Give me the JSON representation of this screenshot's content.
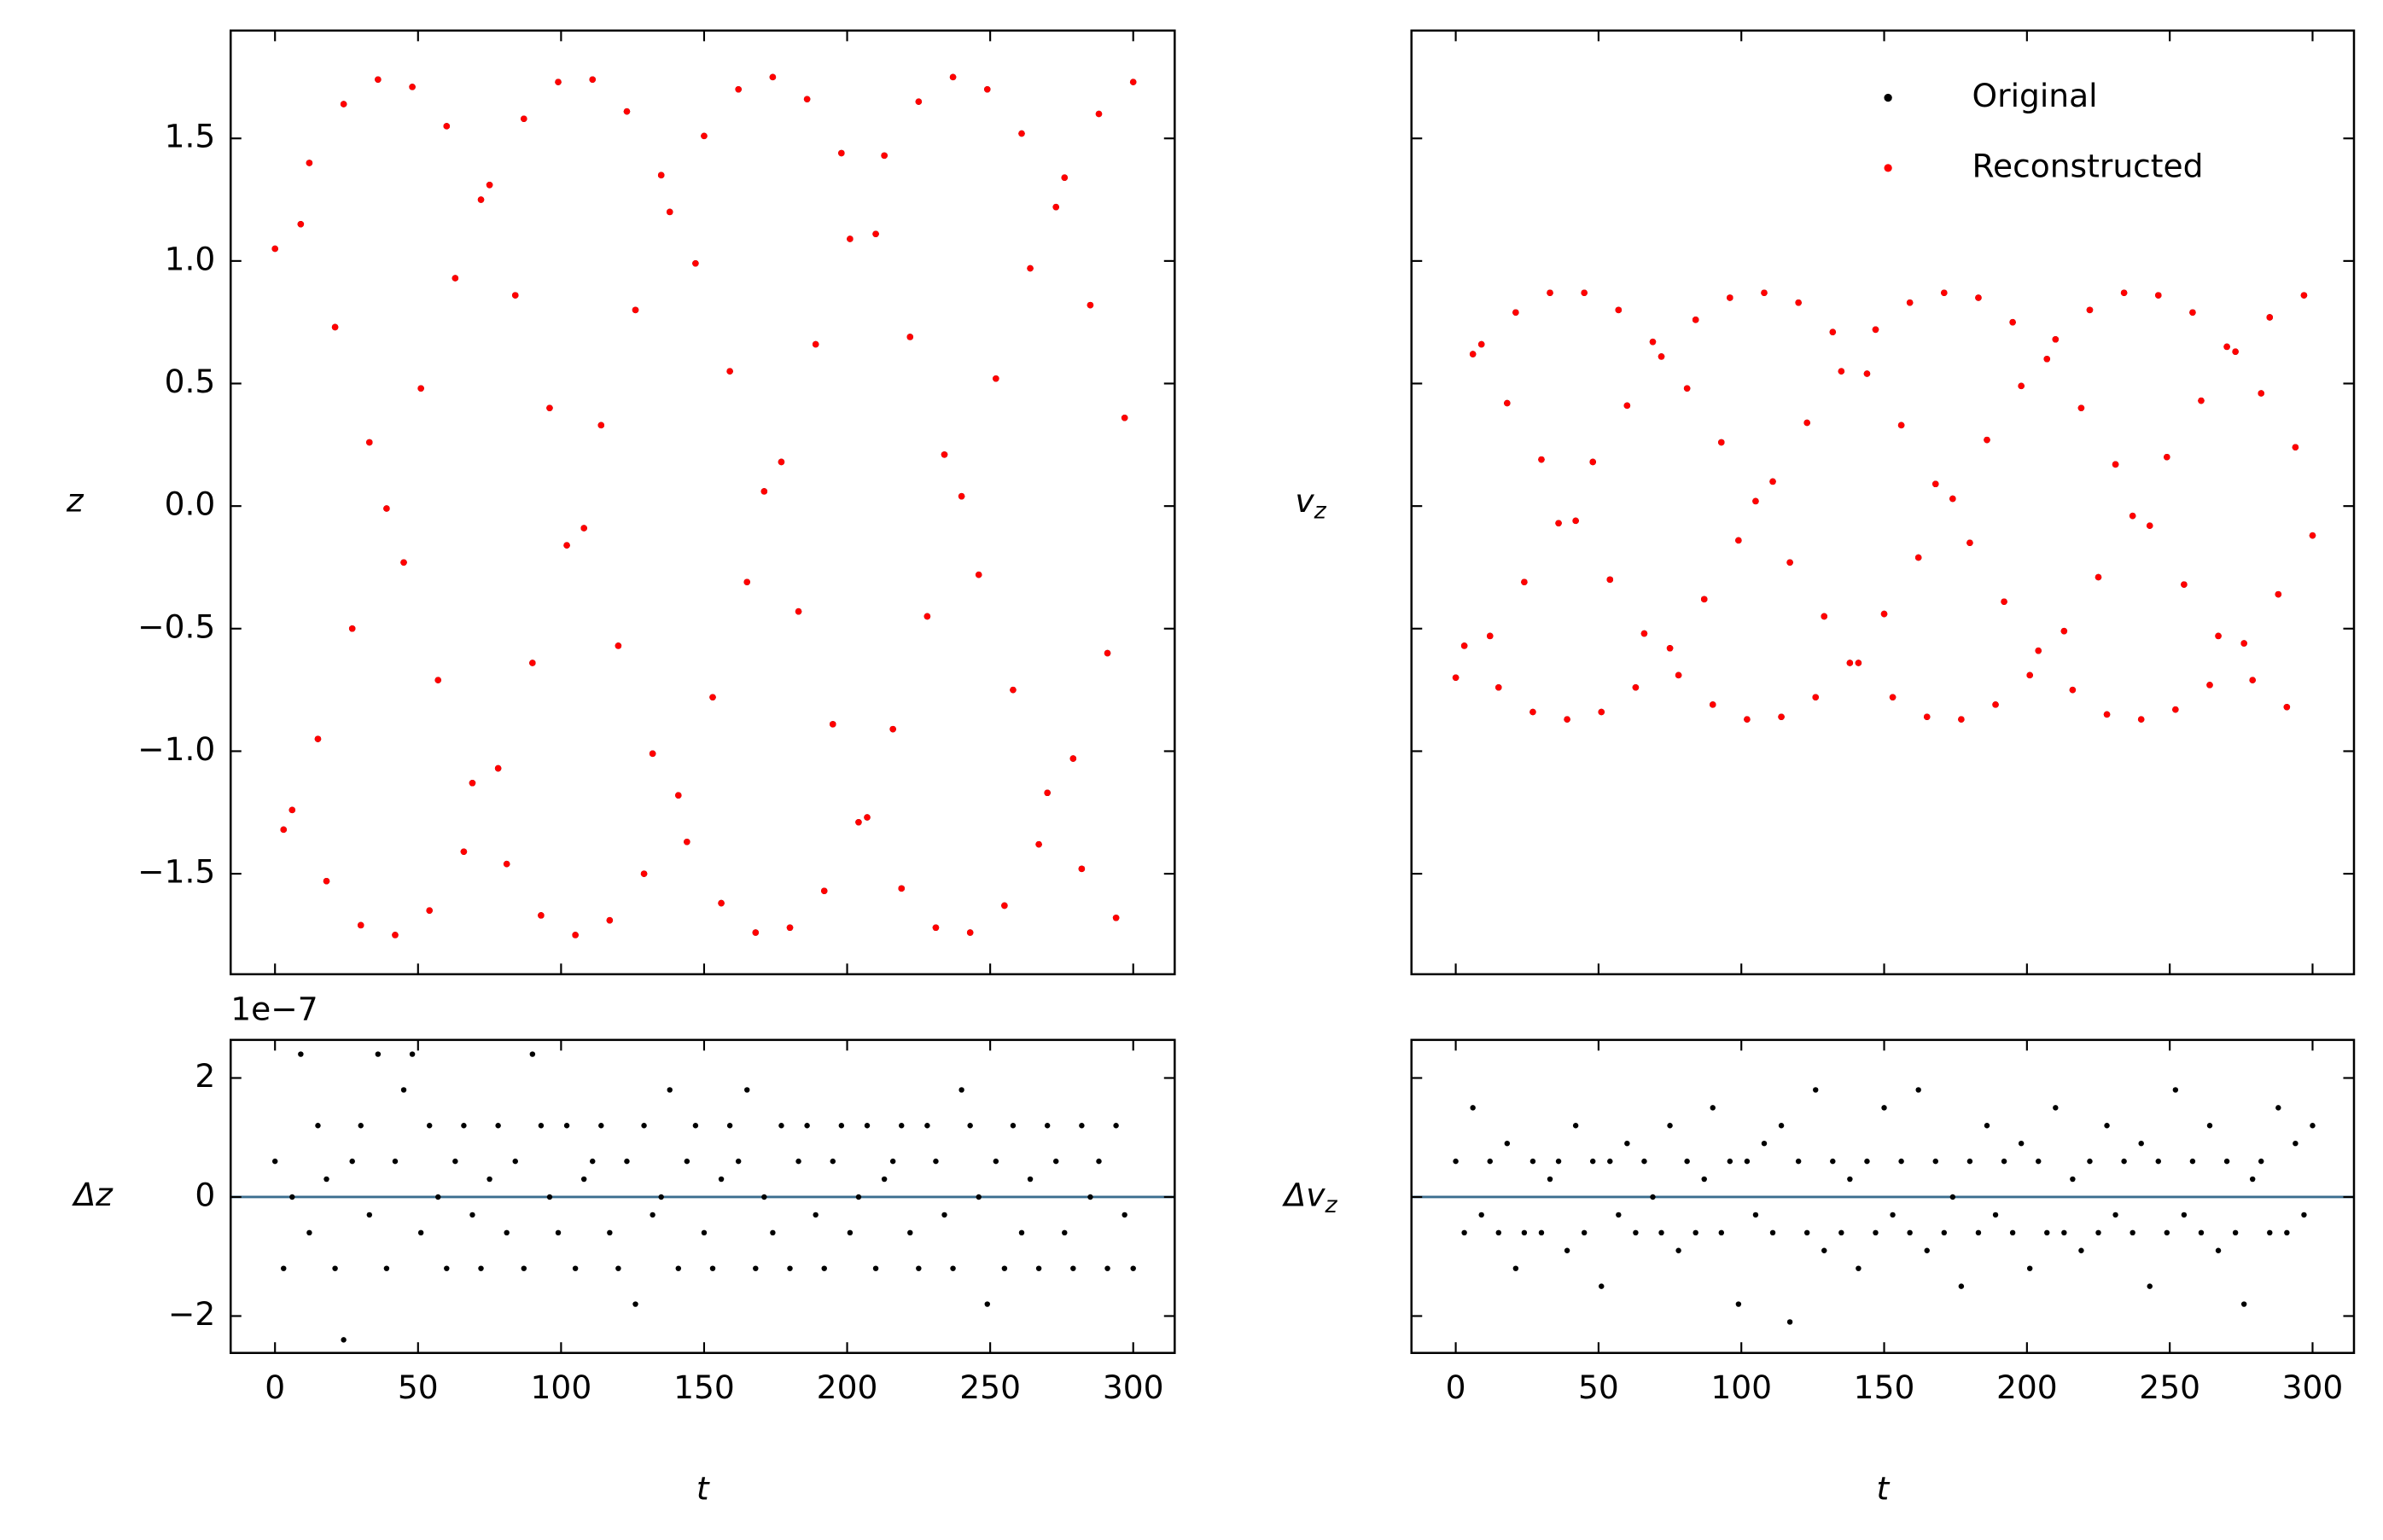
{
  "chart_data": [
    {
      "type": "scatter",
      "ylabel": "z",
      "x": [
        0,
        3,
        6,
        9,
        12,
        15,
        18,
        21,
        24,
        27,
        30,
        33,
        36,
        39,
        42,
        45,
        48,
        51,
        54,
        57,
        60,
        63,
        66,
        69,
        72,
        75,
        78,
        81,
        84,
        87,
        90,
        93,
        96,
        99,
        102,
        105,
        108,
        111,
        114,
        117,
        120,
        123,
        126,
        129,
        132,
        135,
        138,
        141,
        144,
        147,
        150,
        153,
        156,
        159,
        162,
        165,
        168,
        171,
        174,
        177,
        180,
        183,
        186,
        189,
        192,
        195,
        198,
        201,
        204,
        207,
        210,
        213,
        216,
        219,
        222,
        225,
        228,
        231,
        234,
        237,
        240,
        243,
        246,
        249,
        252,
        255,
        258,
        261,
        264,
        267,
        270,
        273,
        276,
        279,
        282,
        285,
        288,
        291,
        294,
        297,
        300
      ],
      "series": [
        {
          "name": "Original",
          "color": "#000000",
          "values": [
            1.05,
            -1.32,
            -1.24,
            1.15,
            1.4,
            -0.95,
            -1.53,
            0.73,
            1.64,
            -0.5,
            -1.71,
            0.26,
            1.74,
            -0.01,
            -1.75,
            -0.23,
            1.71,
            0.48,
            -1.65,
            -0.71,
            1.55,
            0.93,
            -1.41,
            -1.13,
            1.25,
            1.31,
            -1.07,
            -1.46,
            0.86,
            1.58,
            -0.64,
            -1.67,
            0.4,
            1.73,
            -0.16,
            -1.75,
            -0.09,
            1.74,
            0.33,
            -1.69,
            -0.57,
            1.61,
            0.8,
            -1.5,
            -1.01,
            1.35,
            1.2,
            -1.18,
            -1.37,
            0.99,
            1.51,
            -0.78,
            -1.62,
            0.55,
            1.7,
            -0.31,
            -1.74,
            0.06,
            1.75,
            0.18,
            -1.72,
            -0.43,
            1.66,
            0.66,
            -1.57,
            -0.89,
            1.44,
            1.09,
            -1.29,
            -1.27,
            1.11,
            1.43,
            -0.91,
            -1.56,
            0.69,
            1.65,
            -0.45,
            -1.72,
            0.21,
            1.75,
            0.04,
            -1.74,
            -0.28,
            1.7,
            0.52,
            -1.63,
            -0.75,
            1.52,
            0.97,
            -1.38,
            -1.17,
            1.22,
            1.34,
            -1.03,
            -1.48,
            0.82,
            1.6,
            -0.6,
            -1.68,
            0.36,
            1.73
          ]
        },
        {
          "name": "Reconstructed",
          "color": "#ff0000",
          "values": [
            1.05,
            -1.32,
            -1.24,
            1.15,
            1.4,
            -0.95,
            -1.53,
            0.73,
            1.64,
            -0.5,
            -1.71,
            0.26,
            1.74,
            -0.01,
            -1.75,
            -0.23,
            1.71,
            0.48,
            -1.65,
            -0.71,
            1.55,
            0.93,
            -1.41,
            -1.13,
            1.25,
            1.31,
            -1.07,
            -1.46,
            0.86,
            1.58,
            -0.64,
            -1.67,
            0.4,
            1.73,
            -0.16,
            -1.75,
            -0.09,
            1.74,
            0.33,
            -1.69,
            -0.57,
            1.61,
            0.8,
            -1.5,
            -1.01,
            1.35,
            1.2,
            -1.18,
            -1.37,
            0.99,
            1.51,
            -0.78,
            -1.62,
            0.55,
            1.7,
            -0.31,
            -1.74,
            0.06,
            1.75,
            0.18,
            -1.72,
            -0.43,
            1.66,
            0.66,
            -1.57,
            -0.89,
            1.44,
            1.09,
            -1.29,
            -1.27,
            1.11,
            1.43,
            -0.91,
            -1.56,
            0.69,
            1.65,
            -0.45,
            -1.72,
            0.21,
            1.75,
            0.04,
            -1.74,
            -0.28,
            1.7,
            0.52,
            -1.63,
            -0.75,
            1.52,
            0.97,
            -1.38,
            -1.17,
            1.22,
            1.34,
            -1.03,
            -1.48,
            0.82,
            1.6,
            -0.6,
            -1.68,
            0.36,
            1.73
          ]
        }
      ],
      "xlim": [
        -15.5,
        314.5
      ],
      "xticks": [
        0,
        50,
        100,
        150,
        200,
        250,
        300
      ],
      "xtick_labels": false,
      "ylim": [
        -1.91,
        1.94
      ],
      "yticks": [
        {
          "value": -1.5,
          "label": "−1.5"
        },
        {
          "value": -1,
          "label": "−1.0"
        },
        {
          "value": -0.5,
          "label": "−0.5"
        },
        {
          "value": 0,
          "label": "0.0"
        },
        0.5,
        {
          "value": 1,
          "label": "1.0"
        },
        1.5
      ],
      "ytick_labels": true
    },
    {
      "type": "scatter",
      "ylabel": {
        "base": "v",
        "sub": "z"
      },
      "x": [
        0,
        3,
        6,
        9,
        12,
        15,
        18,
        21,
        24,
        27,
        30,
        33,
        36,
        39,
        42,
        45,
        48,
        51,
        54,
        57,
        60,
        63,
        66,
        69,
        72,
        75,
        78,
        81,
        84,
        87,
        90,
        93,
        96,
        99,
        102,
        105,
        108,
        111,
        114,
        117,
        120,
        123,
        126,
        129,
        132,
        135,
        138,
        141,
        144,
        147,
        150,
        153,
        156,
        159,
        162,
        165,
        168,
        171,
        174,
        177,
        180,
        183,
        186,
        189,
        192,
        195,
        198,
        201,
        204,
        207,
        210,
        213,
        216,
        219,
        222,
        225,
        228,
        231,
        234,
        237,
        240,
        243,
        246,
        249,
        252,
        255,
        258,
        261,
        264,
        267,
        270,
        273,
        276,
        279,
        282,
        285,
        288,
        291,
        294,
        297,
        300
      ],
      "series": [
        {
          "name": "Original",
          "color": "#000000",
          "values": [
            -0.7,
            -0.57,
            0.62,
            0.66,
            -0.53,
            -0.74,
            0.42,
            0.79,
            -0.31,
            -0.84,
            0.19,
            0.87,
            -0.07,
            -0.87,
            -0.06,
            0.87,
            0.18,
            -0.84,
            -0.3,
            0.8,
            0.41,
            -0.74,
            -0.52,
            0.67,
            0.61,
            -0.58,
            -0.69,
            0.48,
            0.76,
            -0.38,
            -0.81,
            0.26,
            0.85,
            -0.14,
            -0.87,
            0.02,
            0.87,
            0.1,
            -0.86,
            -0.23,
            0.83,
            0.34,
            -0.78,
            -0.45,
            0.71,
            0.55,
            -0.64,
            -0.64,
            0.54,
            0.72,
            -0.44,
            -0.78,
            0.33,
            0.83,
            -0.21,
            -0.86,
            0.09,
            0.87,
            0.03,
            -0.87,
            -0.15,
            0.85,
            0.27,
            -0.81,
            -0.39,
            0.75,
            0.49,
            -0.69,
            -0.59,
            0.6,
            0.68,
            -0.51,
            -0.75,
            0.4,
            0.8,
            -0.29,
            -0.85,
            0.17,
            0.87,
            -0.04,
            -0.87,
            -0.08,
            0.86,
            0.2,
            -0.83,
            -0.32,
            0.79,
            0.43,
            -0.73,
            -0.53,
            0.65,
            0.63,
            -0.56,
            -0.71,
            0.46,
            0.77,
            -0.36,
            -0.82,
            0.24,
            0.86,
            -0.12
          ]
        },
        {
          "name": "Reconstructed",
          "color": "#ff0000",
          "values": [
            -0.7,
            -0.57,
            0.62,
            0.66,
            -0.53,
            -0.74,
            0.42,
            0.79,
            -0.31,
            -0.84,
            0.19,
            0.87,
            -0.07,
            -0.87,
            -0.06,
            0.87,
            0.18,
            -0.84,
            -0.3,
            0.8,
            0.41,
            -0.74,
            -0.52,
            0.67,
            0.61,
            -0.58,
            -0.69,
            0.48,
            0.76,
            -0.38,
            -0.81,
            0.26,
            0.85,
            -0.14,
            -0.87,
            0.02,
            0.87,
            0.1,
            -0.86,
            -0.23,
            0.83,
            0.34,
            -0.78,
            -0.45,
            0.71,
            0.55,
            -0.64,
            -0.64,
            0.54,
            0.72,
            -0.44,
            -0.78,
            0.33,
            0.83,
            -0.21,
            -0.86,
            0.09,
            0.87,
            0.03,
            -0.87,
            -0.15,
            0.85,
            0.27,
            -0.81,
            -0.39,
            0.75,
            0.49,
            -0.69,
            -0.59,
            0.6,
            0.68,
            -0.51,
            -0.75,
            0.4,
            0.8,
            -0.29,
            -0.85,
            0.17,
            0.87,
            -0.04,
            -0.87,
            -0.08,
            0.86,
            0.2,
            -0.83,
            -0.32,
            0.79,
            0.43,
            -0.73,
            -0.53,
            0.65,
            0.63,
            -0.56,
            -0.71,
            0.46,
            0.77,
            -0.36,
            -0.82,
            0.24,
            0.86,
            -0.12
          ]
        }
      ],
      "xlim": [
        -15.5,
        314.5
      ],
      "xticks": [
        0,
        50,
        100,
        150,
        200,
        250,
        300
      ],
      "xtick_labels": false,
      "ylim": [
        -1.91,
        1.94
      ],
      "yticks": [
        -1.5,
        -1,
        -0.5,
        0,
        0.5,
        1,
        1.5
      ],
      "ytick_labels": false,
      "legend": "upper right"
    },
    {
      "type": "scatter",
      "ylabel": "Δz",
      "xlabel": "t",
      "offset_label": "1e−7",
      "x": [
        0,
        3,
        6,
        9,
        12,
        15,
        18,
        21,
        24,
        27,
        30,
        33,
        36,
        39,
        42,
        45,
        48,
        51,
        54,
        57,
        60,
        63,
        66,
        69,
        72,
        75,
        78,
        81,
        84,
        87,
        90,
        93,
        96,
        99,
        102,
        105,
        108,
        111,
        114,
        117,
        120,
        123,
        126,
        129,
        132,
        135,
        138,
        141,
        144,
        147,
        150,
        153,
        156,
        159,
        162,
        165,
        168,
        171,
        174,
        177,
        180,
        183,
        186,
        189,
        192,
        195,
        198,
        201,
        204,
        207,
        210,
        213,
        216,
        219,
        222,
        225,
        228,
        231,
        234,
        237,
        240,
        243,
        246,
        249,
        252,
        255,
        258,
        261,
        264,
        267,
        270,
        273,
        276,
        279,
        282,
        285,
        288,
        291,
        294,
        297,
        300
      ],
      "values": [
        0.6,
        -1.2,
        0,
        2.4,
        -0.6,
        1.2,
        0.3,
        -1.2,
        -2.4,
        0.6,
        1.2,
        -0.3,
        2.4,
        -1.2,
        0.6,
        1.8,
        2.4,
        -0.6,
        1.2,
        0,
        -1.2,
        0.6,
        1.2,
        -0.3,
        -1.2,
        0.3,
        1.2,
        -0.6,
        0.6,
        -1.2,
        2.4,
        1.2,
        0,
        -0.6,
        1.2,
        -1.2,
        0.3,
        0.6,
        1.2,
        -0.6,
        -1.2,
        0.6,
        -1.8,
        1.2,
        -0.3,
        0,
        1.8,
        -1.2,
        0.6,
        1.2,
        -0.6,
        -1.2,
        0.3,
        1.2,
        0.6,
        1.8,
        -1.2,
        0,
        -0.6,
        1.2,
        -1.2,
        0.6,
        1.2,
        -0.3,
        -1.2,
        0.6,
        1.2,
        -0.6,
        0,
        1.2,
        -1.2,
        0.3,
        0.6,
        1.2,
        -0.6,
        -1.2,
        1.2,
        0.6,
        -0.3,
        -1.2,
        1.8,
        1.2,
        0,
        -1.8,
        0.6,
        -1.2,
        1.2,
        -0.6,
        0.3,
        -1.2,
        1.2,
        0.6,
        -0.6,
        -1.2,
        1.2,
        0,
        0.6,
        -1.2,
        1.2,
        -0.3,
        -1.2
      ],
      "color": "#000000",
      "reference_line": 0,
      "reference_color": "#3b6e8f",
      "xlim": [
        -15.5,
        314.5
      ],
      "xticks": [
        0,
        50,
        100,
        150,
        200,
        250,
        300
      ],
      "xtick_labels": true,
      "ylim": [
        -2.62,
        2.64
      ],
      "yticks": [
        {
          "value": -2,
          "label": "−2"
        },
        0,
        2
      ],
      "ytick_labels": true
    },
    {
      "type": "scatter",
      "ylabel": {
        "base": "Δv",
        "sub": "z"
      },
      "xlabel": "t",
      "x": [
        0,
        3,
        6,
        9,
        12,
        15,
        18,
        21,
        24,
        27,
        30,
        33,
        36,
        39,
        42,
        45,
        48,
        51,
        54,
        57,
        60,
        63,
        66,
        69,
        72,
        75,
        78,
        81,
        84,
        87,
        90,
        93,
        96,
        99,
        102,
        105,
        108,
        111,
        114,
        117,
        120,
        123,
        126,
        129,
        132,
        135,
        138,
        141,
        144,
        147,
        150,
        153,
        156,
        159,
        162,
        165,
        168,
        171,
        174,
        177,
        180,
        183,
        186,
        189,
        192,
        195,
        198,
        201,
        204,
        207,
        210,
        213,
        216,
        219,
        222,
        225,
        228,
        231,
        234,
        237,
        240,
        243,
        246,
        249,
        252,
        255,
        258,
        261,
        264,
        267,
        270,
        273,
        276,
        279,
        282,
        285,
        288,
        291,
        294,
        297,
        300
      ],
      "values": [
        0.6,
        -0.6,
        1.5,
        -0.3,
        0.6,
        -0.6,
        0.9,
        -1.2,
        -0.6,
        0.6,
        -0.6,
        0.3,
        0.6,
        -0.9,
        1.2,
        -0.6,
        0.6,
        -1.5,
        0.6,
        -0.3,
        0.9,
        -0.6,
        0.6,
        0,
        -0.6,
        1.2,
        -0.9,
        0.6,
        -0.6,
        0.3,
        1.5,
        -0.6,
        0.6,
        -1.8,
        0.6,
        -0.3,
        0.9,
        -0.6,
        1.2,
        -2.1,
        0.6,
        -0.6,
        1.8,
        -0.9,
        0.6,
        -0.6,
        0.3,
        -1.2,
        0.6,
        -0.6,
        1.5,
        -0.3,
        0.6,
        -0.6,
        1.8,
        -0.9,
        0.6,
        -0.6,
        0,
        -1.5,
        0.6,
        -0.6,
        1.2,
        -0.3,
        0.6,
        -0.6,
        0.9,
        -1.2,
        0.6,
        -0.6,
        1.5,
        -0.6,
        0.3,
        -0.9,
        0.6,
        -0.6,
        1.2,
        -0.3,
        0.6,
        -0.6,
        0.9,
        -1.5,
        0.6,
        -0.6,
        1.8,
        -0.3,
        0.6,
        -0.6,
        1.2,
        -0.9,
        0.6,
        -0.6,
        -1.8,
        0.3,
        0.6,
        -0.6,
        1.5,
        -0.6,
        0.9,
        -0.3,
        1.2
      ],
      "color": "#000000",
      "reference_line": 0,
      "reference_color": "#3b6e8f",
      "xlim": [
        -15.5,
        314.5
      ],
      "xticks": [
        0,
        50,
        100,
        150,
        200,
        250,
        300
      ],
      "xtick_labels": true,
      "ylim": [
        -2.62,
        2.64
      ],
      "yticks": [
        -2,
        0,
        2
      ],
      "ytick_labels": false
    }
  ]
}
